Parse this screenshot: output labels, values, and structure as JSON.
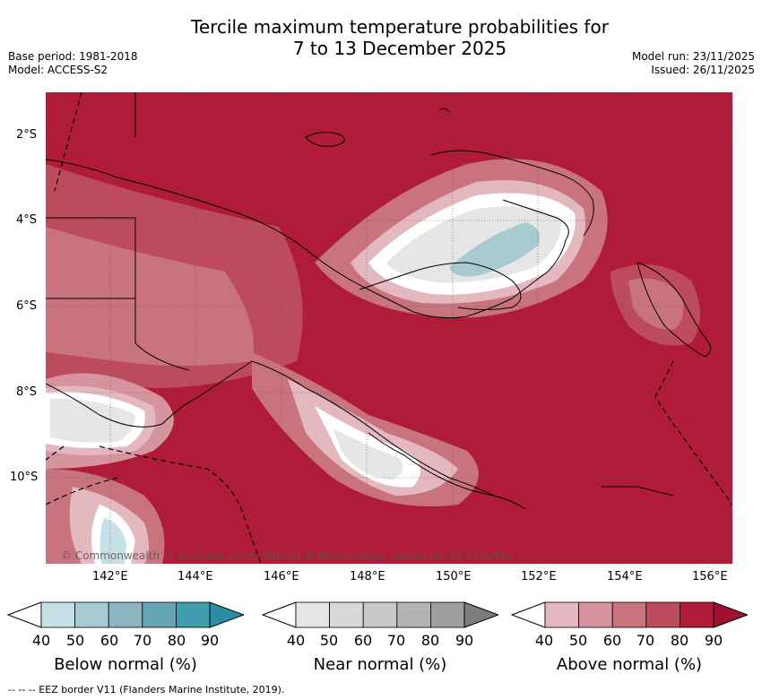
{
  "title_line1": "Tercile maximum temperature probabilities for",
  "title_line2": "7 to 13 December 2025",
  "meta_left": {
    "base_period": "Base period: 1981-2018",
    "model": "Model: ACCESS-S2"
  },
  "meta_right": {
    "model_run": "Model run: 23/11/2025",
    "issued": "Issued: 26/11/2025"
  },
  "credit": "© Commonwealth of Australia 2025, Bureau of Meteorology, supported by COSPPac",
  "lat_ticks": [
    "2°S",
    "4°S",
    "6°S",
    "8°S",
    "10°S"
  ],
  "lon_ticks": [
    "142°E",
    "144°E",
    "146°E",
    "148°E",
    "150°E",
    "152°E",
    "154°E",
    "156°E"
  ],
  "colorbars": [
    {
      "name": "below",
      "title": "Below normal (%)",
      "ticks": [
        "40",
        "50",
        "60",
        "70",
        "80",
        "90"
      ],
      "colors": [
        "#ffffff",
        "#c7e0e6",
        "#a8cad1",
        "#8bb6c1",
        "#66a5b5",
        "#3f9dae",
        "#2b8da1"
      ]
    },
    {
      "name": "near",
      "title": "Near normal (%)",
      "ticks": [
        "40",
        "50",
        "60",
        "70",
        "80",
        "90"
      ],
      "colors": [
        "#ffffff",
        "#e6e6e6",
        "#d8d8d8",
        "#c8c8c8",
        "#b3b3b3",
        "#9f9f9f",
        "#7d7d7d"
      ]
    },
    {
      "name": "above",
      "title": "Above normal (%)",
      "ticks": [
        "40",
        "50",
        "60",
        "70",
        "80",
        "90"
      ],
      "colors": [
        "#ffffff",
        "#e3b8bf",
        "#d6949e",
        "#c9737f",
        "#bd4b5e",
        "#b01c38",
        "#a01030"
      ]
    }
  ],
  "footer": "-- -- -- EEZ border V11 (Flanders Marine Institute, 2019)."
}
